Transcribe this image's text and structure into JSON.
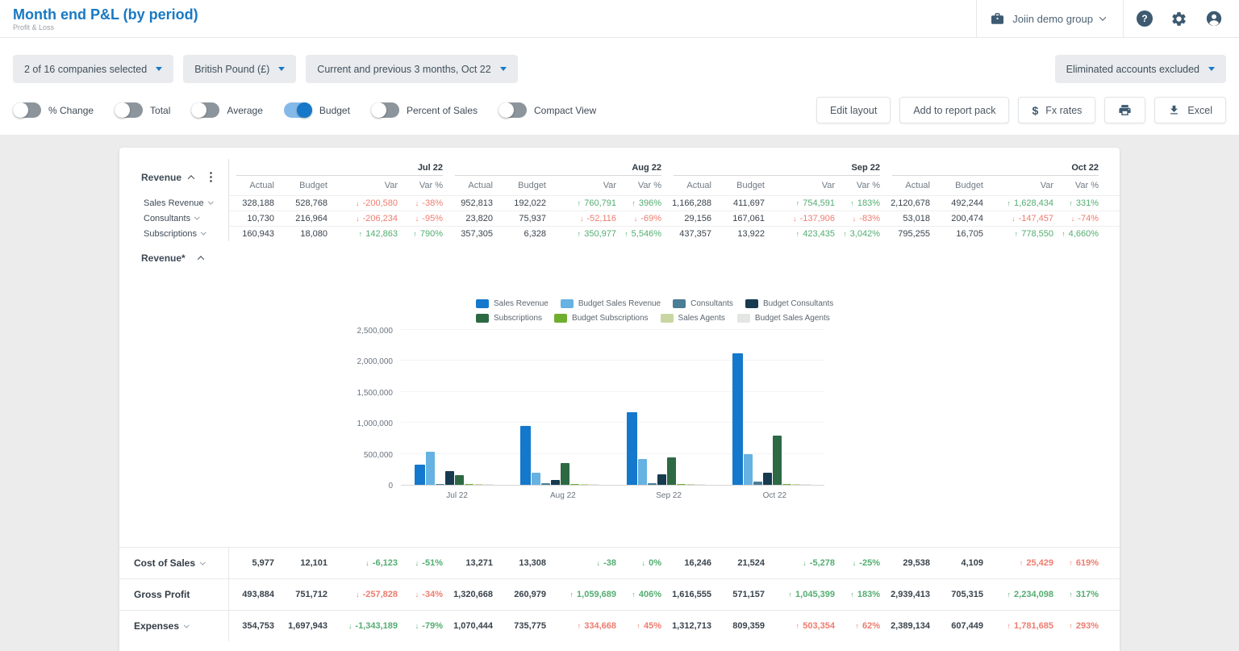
{
  "header": {
    "title": "Month end P&L (by period)",
    "subtitle": "Profit & Loss",
    "group_selector": "Joiin demo group"
  },
  "icons": [
    "briefcase-icon",
    "chevron-down-icon",
    "help-icon",
    "gear-icon",
    "account-icon",
    "dollar-icon",
    "printer-icon",
    "download-icon",
    "kebab-menu-icon"
  ],
  "filters": {
    "companies": "2 of 16 companies selected",
    "currency": "British Pound (£)",
    "period": "Current and previous 3 months, Oct 22",
    "eliminated": "Eliminated accounts excluded"
  },
  "toggles": [
    {
      "label": "% Change",
      "on": false
    },
    {
      "label": "Total",
      "on": false
    },
    {
      "label": "Average",
      "on": false
    },
    {
      "label": "Budget",
      "on": true
    },
    {
      "label": "Percent of Sales",
      "on": false
    },
    {
      "label": "Compact View",
      "on": false
    }
  ],
  "actions": {
    "edit_layout": "Edit layout",
    "add_to_report_pack": "Add to report pack",
    "fx_rates": "Fx rates",
    "excel": "Excel"
  },
  "colors": {
    "title-blue": "#1779c4",
    "link": "#1878c8",
    "green": "#53ad71",
    "red": "#ee7c6f",
    "dark": "#3d5a70"
  },
  "table": {
    "section_label": "Revenue",
    "months": [
      "Jul 22",
      "Aug 22",
      "Sep 22",
      "Oct 22"
    ],
    "columns": [
      "Actual",
      "Budget",
      "Var",
      "Var %"
    ],
    "revenue_rows": [
      {
        "label": "Sales Revenue",
        "caret": true,
        "months": [
          {
            "a": "328,188",
            "b": "528,768",
            "v": "-200,580",
            "vp": "-38%",
            "dir": "down",
            "tone": "bad"
          },
          {
            "a": "952,813",
            "b": "192,022",
            "v": "760,791",
            "vp": "396%",
            "dir": "up",
            "tone": "good"
          },
          {
            "a": "1,166,288",
            "b": "411,697",
            "v": "754,591",
            "vp": "183%",
            "dir": "up",
            "tone": "good"
          },
          {
            "a": "2,120,678",
            "b": "492,244",
            "v": "1,628,434",
            "vp": "331%",
            "dir": "up",
            "tone": "good"
          }
        ]
      },
      {
        "label": "Consultants",
        "caret": true,
        "months": [
          {
            "a": "10,730",
            "b": "216,964",
            "v": "-206,234",
            "vp": "-95%",
            "dir": "down",
            "tone": "bad"
          },
          {
            "a": "23,820",
            "b": "75,937",
            "v": "-52,116",
            "vp": "-69%",
            "dir": "down",
            "tone": "bad"
          },
          {
            "a": "29,156",
            "b": "167,061",
            "v": "-137,906",
            "vp": "-83%",
            "dir": "down",
            "tone": "bad"
          },
          {
            "a": "53,018",
            "b": "200,474",
            "v": "-147,457",
            "vp": "-74%",
            "dir": "down",
            "tone": "bad"
          }
        ]
      },
      {
        "label": "Subscriptions",
        "caret": true,
        "months": [
          {
            "a": "160,943",
            "b": "18,080",
            "v": "142,863",
            "vp": "790%",
            "dir": "up",
            "tone": "good"
          },
          {
            "a": "357,305",
            "b": "6,328",
            "v": "350,977",
            "vp": "5,546%",
            "dir": "up",
            "tone": "good"
          },
          {
            "a": "437,357",
            "b": "13,922",
            "v": "423,435",
            "vp": "3,042%",
            "dir": "up",
            "tone": "good"
          },
          {
            "a": "795,255",
            "b": "16,705",
            "v": "778,550",
            "vp": "4,660%",
            "dir": "up",
            "tone": "good"
          }
        ]
      }
    ],
    "bottom_rows": [
      {
        "label": "Cost of Sales",
        "caret": true,
        "months": [
          {
            "a": "5,977",
            "b": "12,101",
            "v": "-6,123",
            "vp": "-51%",
            "dir": "down",
            "tone": "good"
          },
          {
            "a": "13,271",
            "b": "13,308",
            "v": "-38",
            "vp": "0%",
            "dir": "down",
            "tone": "good"
          },
          {
            "a": "16,246",
            "b": "21,524",
            "v": "-5,278",
            "vp": "-25%",
            "dir": "down",
            "tone": "good"
          },
          {
            "a": "29,538",
            "b": "4,109",
            "v": "25,429",
            "vp": "619%",
            "dir": "up",
            "tone": "bad"
          }
        ]
      },
      {
        "label": "Gross Profit",
        "caret": false,
        "months": [
          {
            "a": "493,884",
            "b": "751,712",
            "v": "-257,828",
            "vp": "-34%",
            "dir": "down",
            "tone": "bad"
          },
          {
            "a": "1,320,668",
            "b": "260,979",
            "v": "1,059,689",
            "vp": "406%",
            "dir": "up",
            "tone": "good"
          },
          {
            "a": "1,616,555",
            "b": "571,157",
            "v": "1,045,399",
            "vp": "183%",
            "dir": "up",
            "tone": "good"
          },
          {
            "a": "2,939,413",
            "b": "705,315",
            "v": "2,234,098",
            "vp": "317%",
            "dir": "up",
            "tone": "good"
          }
        ]
      },
      {
        "label": "Expenses",
        "caret": true,
        "months": [
          {
            "a": "354,753",
            "b": "1,697,943",
            "v": "-1,343,189",
            "vp": "-79%",
            "dir": "down",
            "tone": "good"
          },
          {
            "a": "1,070,444",
            "b": "735,775",
            "v": "334,668",
            "vp": "45%",
            "dir": "up",
            "tone": "bad"
          },
          {
            "a": "1,312,713",
            "b": "809,359",
            "v": "503,354",
            "vp": "62%",
            "dir": "up",
            "tone": "bad"
          },
          {
            "a": "2,389,134",
            "b": "607,449",
            "v": "1,781,685",
            "vp": "293%",
            "dir": "up",
            "tone": "bad"
          }
        ]
      }
    ]
  },
  "chart_data": {
    "type": "bar",
    "title": "Revenue*",
    "categories": [
      "Jul 22",
      "Aug 22",
      "Sep 22",
      "Oct 22"
    ],
    "series": [
      {
        "name": "Sales Revenue",
        "color": "#1478cc",
        "values": [
          328188,
          952813,
          1166288,
          2120678
        ]
      },
      {
        "name": "Budget Sales Revenue",
        "color": "#66b2e2",
        "values": [
          528768,
          192022,
          411697,
          492244
        ]
      },
      {
        "name": "Consultants",
        "color": "#4a7d96",
        "values": [
          10730,
          23820,
          29156,
          53018
        ]
      },
      {
        "name": "Budget Consultants",
        "color": "#173a4f",
        "values": [
          216964,
          75937,
          167061,
          200474
        ]
      },
      {
        "name": "Subscriptions",
        "color": "#2d6a44",
        "values": [
          160943,
          357305,
          437357,
          795255
        ]
      },
      {
        "name": "Budget Subscriptions",
        "color": "#6fae2f",
        "values": [
          18080,
          6328,
          13922,
          16705
        ]
      },
      {
        "name": "Sales Agents",
        "color": "#c9d6a2",
        "values": [
          0,
          0,
          0,
          0
        ]
      },
      {
        "name": "Budget Sales Agents",
        "color": "#e4e6e4",
        "values": [
          0,
          0,
          0,
          0
        ]
      }
    ],
    "ylim": [
      0,
      2500000
    ],
    "ytick_step": 500000,
    "grid": true,
    "legend_position": "top-center"
  }
}
